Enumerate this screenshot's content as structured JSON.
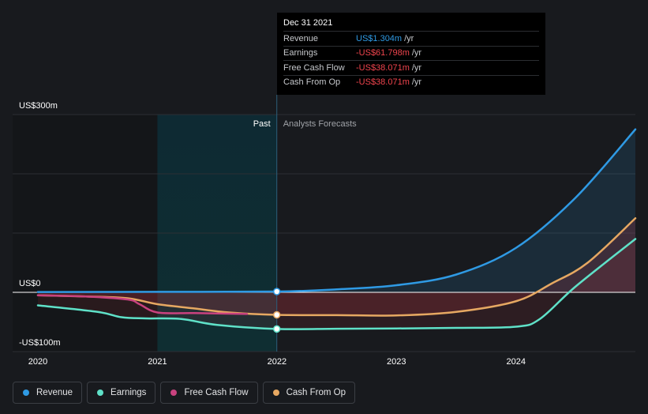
{
  "tooltip": {
    "date": "Dec 31 2021",
    "rows": [
      {
        "label": "Revenue",
        "value": "US$1.304m",
        "unit": "/yr",
        "color": "#2f9ae4"
      },
      {
        "label": "Earnings",
        "value": "-US$61.798m",
        "unit": "/yr",
        "color": "#f0444d"
      },
      {
        "label": "Free Cash Flow",
        "value": "-US$38.071m",
        "unit": "/yr",
        "color": "#f0444d"
      },
      {
        "label": "Cash From Op",
        "value": "-US$38.071m",
        "unit": "/yr",
        "color": "#f0444d"
      }
    ]
  },
  "legend": [
    {
      "label": "Revenue",
      "color": "#2f9ae4",
      "icon": "revenue-dot-icon"
    },
    {
      "label": "Earnings",
      "color": "#5fe1c8",
      "icon": "earnings-dot-icon"
    },
    {
      "label": "Free Cash Flow",
      "color": "#c9427f",
      "icon": "free-cash-flow-dot-icon"
    },
    {
      "label": "Cash From Op",
      "color": "#e6a862",
      "icon": "cash-from-op-dot-icon"
    }
  ],
  "chart_data": {
    "type": "line",
    "title": "",
    "xlabel": "",
    "ylabel": "",
    "xlim": [
      2020.0,
      2024.999
    ],
    "ylim": [
      -100,
      300
    ],
    "y_ticks": [
      {
        "value": 300,
        "label": "US$300m"
      },
      {
        "value": 0,
        "label": "US$0"
      },
      {
        "value": -100,
        "label": "-US$100m"
      }
    ],
    "x_ticks": [
      {
        "value": 2020,
        "label": "2020"
      },
      {
        "value": 2021,
        "label": "2021"
      },
      {
        "value": 2022,
        "label": "2022"
      },
      {
        "value": 2023,
        "label": "2023"
      },
      {
        "value": 2024,
        "label": "2024"
      }
    ],
    "past_label": "Past",
    "forecast_label": "Analysts Forecasts",
    "divider_x": 2021.999,
    "highlight_range": [
      2021.0,
      2021.999
    ],
    "series": [
      {
        "name": "Revenue",
        "color": "#2f9ae4",
        "fill": true,
        "points": [
          [
            2020.0,
            0.5
          ],
          [
            2021.0,
            0.8
          ],
          [
            2021.999,
            1.3
          ],
          [
            2022.5,
            5
          ],
          [
            2023.0,
            12
          ],
          [
            2023.5,
            30
          ],
          [
            2024.0,
            75
          ],
          [
            2024.5,
            160
          ],
          [
            2024.999,
            275
          ]
        ]
      },
      {
        "name": "Cash From Op",
        "color": "#e6a862",
        "fill": true,
        "points": [
          [
            2020.0,
            -5
          ],
          [
            2020.4,
            -7
          ],
          [
            2020.75,
            -10
          ],
          [
            2021.0,
            -20
          ],
          [
            2021.3,
            -27
          ],
          [
            2021.6,
            -34
          ],
          [
            2021.999,
            -38
          ],
          [
            2022.5,
            -38.5
          ],
          [
            2023.0,
            -39
          ],
          [
            2023.5,
            -33
          ],
          [
            2024.0,
            -15
          ],
          [
            2024.3,
            15
          ],
          [
            2024.6,
            50
          ],
          [
            2024.999,
            125
          ]
        ]
      },
      {
        "name": "Free Cash Flow",
        "color": "#c9427f",
        "fill": false,
        "points": [
          [
            2020.0,
            -5
          ],
          [
            2020.4,
            -7
          ],
          [
            2020.75,
            -12
          ],
          [
            2020.85,
            -20
          ],
          [
            2021.0,
            -34
          ],
          [
            2021.3,
            -35
          ],
          [
            2021.6,
            -36
          ],
          [
            2021.75,
            -36.5
          ]
        ]
      },
      {
        "name": "Earnings",
        "color": "#5fe1c8",
        "fill": true,
        "points": [
          [
            2020.0,
            -22
          ],
          [
            2020.5,
            -33
          ],
          [
            2020.7,
            -42
          ],
          [
            2020.9,
            -44
          ],
          [
            2021.2,
            -45
          ],
          [
            2021.5,
            -55
          ],
          [
            2021.999,
            -61.8
          ],
          [
            2022.5,
            -61.5
          ],
          [
            2023.0,
            -61
          ],
          [
            2023.5,
            -60
          ],
          [
            2024.0,
            -58
          ],
          [
            2024.2,
            -45
          ],
          [
            2024.5,
            10
          ],
          [
            2024.999,
            90
          ]
        ]
      }
    ],
    "markers": [
      {
        "series": "Revenue",
        "x": 2021.999,
        "y": 1.3
      },
      {
        "series": "Cash From Op",
        "x": 2021.999,
        "y": -38
      },
      {
        "series": "Earnings",
        "x": 2021.999,
        "y": -61.8
      }
    ]
  }
}
